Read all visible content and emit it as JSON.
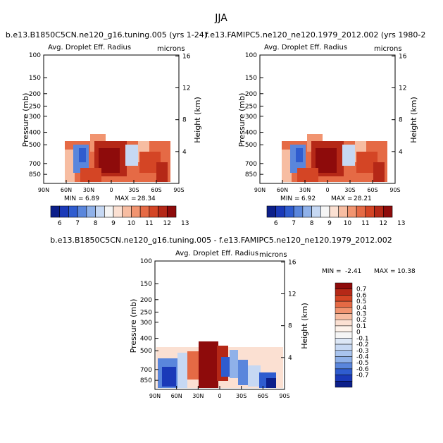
{
  "page": {
    "season": "JJA"
  },
  "colors": {
    "scale_main": [
      "#0c1f8a",
      "#1a39b8",
      "#2f5ccf",
      "#5a86dc",
      "#8fb1e9",
      "#c6d8f3",
      "#f5f5f5",
      "#fbe0d2",
      "#f7bda2",
      "#f19470",
      "#e56a45",
      "#d44525",
      "#b52817",
      "#8e0b0b"
    ],
    "scale_diff": [
      "#8e0b0b",
      "#b52817",
      "#d44525",
      "#e56a45",
      "#f19470",
      "#f7bda2",
      "#fbe0d2",
      "#fdf2ea",
      "#f5f5f5",
      "#dce7f6",
      "#c6d8f3",
      "#a9c4ee",
      "#8fb1e9",
      "#5a86dc",
      "#2f5ccf",
      "#1a39b8",
      "#0c1f8a"
    ]
  },
  "chart_data": [
    {
      "type": "heatmap",
      "title": "b.e13.B1850C5CN.ne120_g16.tuning.005 (yrs 1-24)",
      "subtitle": "Avg. Droplet Eff. Radius",
      "units": "microns",
      "ylabel": "Pressure (mb)",
      "y2label": "Height (km)",
      "xticks": [
        "90N",
        "60N",
        "30N",
        "0",
        "30S",
        "60S",
        "90S"
      ],
      "yticks": [
        "100",
        "150",
        "200",
        "250",
        "300",
        "400",
        "500",
        "700",
        "850"
      ],
      "y2ticks": [
        "16",
        "12",
        "8",
        "4"
      ],
      "min_label": "MIN =",
      "min_value": "6.89",
      "max_label": "MAX =",
      "max_value": "28.34",
      "colorbar_labels": [
        "6",
        "7",
        "8",
        "9",
        "10",
        "11",
        "12",
        "13"
      ]
    },
    {
      "type": "heatmap",
      "title": "f.e13.FAMIPC5.ne120_ne120.1979_2012.002 (yrs 1980-2",
      "subtitle": "Avg. Droplet Eff. Radius",
      "units": "microns",
      "ylabel": "Pressure (mb)",
      "y2label": "Height (km)",
      "xticks": [
        "90N",
        "60N",
        "30N",
        "0",
        "30S",
        "60S",
        "90S"
      ],
      "yticks": [
        "100",
        "150",
        "200",
        "250",
        "300",
        "400",
        "500",
        "700",
        "850"
      ],
      "y2ticks": [
        "16",
        "12",
        "8",
        "4"
      ],
      "min_label": "MIN =",
      "min_value": "6.92",
      "max_label": "MAX =",
      "max_value": "28.21",
      "colorbar_labels": [
        "6",
        "7",
        "8",
        "9",
        "10",
        "11",
        "12",
        "13"
      ]
    },
    {
      "type": "heatmap",
      "title": "b.e13.B1850C5CN.ne120_g16.tuning.005 - f.e13.FAMIPC5.ne120_ne120.1979_2012.002",
      "subtitle": "Avg. Droplet Eff. Radius",
      "units": "microns",
      "ylabel": "Pressure (mb)",
      "y2label": "Height (km)",
      "xticks": [
        "90N",
        "60N",
        "30N",
        "0",
        "30S",
        "60S",
        "90S"
      ],
      "yticks": [
        "100",
        "150",
        "200",
        "250",
        "300",
        "400",
        "500",
        "700",
        "850"
      ],
      "y2ticks": [
        "16",
        "12",
        "8",
        "4"
      ],
      "min_label": "MIN =",
      "min_value": "-2.41",
      "max_label": "MAX =",
      "max_value": "10.38",
      "colorbar_labels": [
        "0.7",
        "0.6",
        "0.5",
        "0.4",
        "0.3",
        "0.2",
        "0.1",
        "0",
        "-0.1",
        "-0.2",
        "-0.3",
        "-0.4",
        "-0.5",
        "-0.6",
        "-0.7"
      ]
    }
  ]
}
